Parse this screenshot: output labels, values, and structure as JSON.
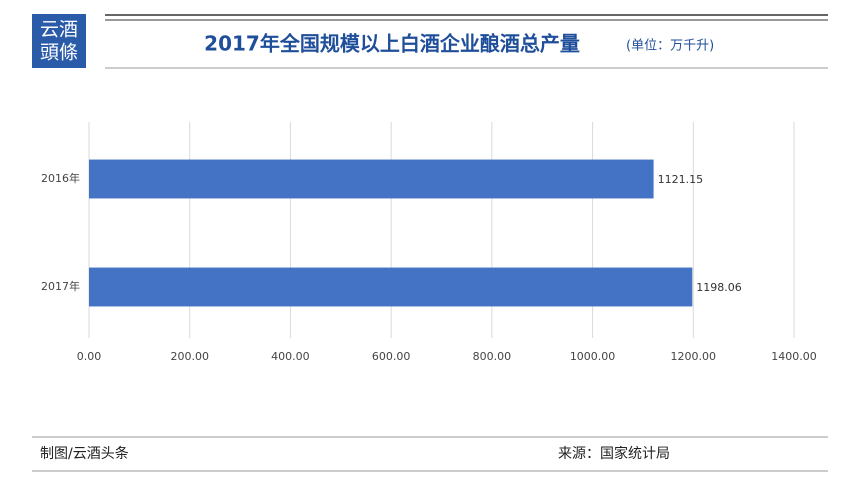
{
  "logo": {
    "lines": [
      "云酒",
      "頭條"
    ]
  },
  "chart_data": {
    "type": "bar",
    "orientation": "horizontal",
    "title": "2017年全国规模以上白酒企业酿酒总产量",
    "subtitle": "(单位：万千升)",
    "categories": [
      "2016年",
      "2017年"
    ],
    "values": [
      1121.15,
      1198.06
    ],
    "color": "#4472c4",
    "xlim": [
      0,
      1400
    ],
    "xticks": [
      {
        "value": 0,
        "label": "0.00"
      },
      {
        "value": 200,
        "label": "200.00"
      },
      {
        "value": 400,
        "label": "400.00"
      },
      {
        "value": 600,
        "label": "600.00"
      },
      {
        "value": 800,
        "label": "800.00"
      },
      {
        "value": 1000,
        "label": "1000.00"
      },
      {
        "value": 1200,
        "label": "1200.00"
      },
      {
        "value": 1400,
        "label": "1400.00"
      }
    ],
    "grid": true
  },
  "footer": {
    "left": "制图/云酒头条",
    "right": "来源：国家统计局"
  }
}
